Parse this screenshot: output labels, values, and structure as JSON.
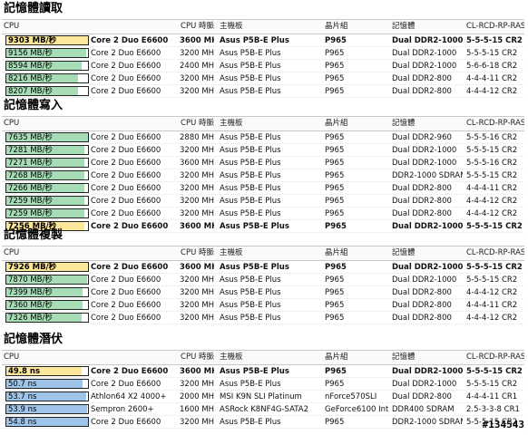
{
  "headers": [
    "CPU",
    "CPU 時脈",
    "主機板",
    "晶片組",
    "記憶體",
    "CL-RCD-RP-RAS"
  ],
  "colors": {
    "green": "#a6ddb6",
    "yellow": "#fde79a",
    "blue": "#9fc4ea"
  },
  "sections": [
    {
      "title": "記憶體讀取",
      "rows": [
        {
          "value": "9303 MB/秒",
          "fill": 1.0,
          "color": "yellow",
          "cpu": "Core 2 Duo E6600",
          "clock": "3600 MHz",
          "board": "Asus P5B-E Plus",
          "chipset": "P965",
          "memory": "Dual DDR2-1000",
          "timing": "5-5-5-15 CR2",
          "bold": true
        },
        {
          "value": "9156 MB/秒",
          "fill": 0.98,
          "color": "green",
          "cpu": "Core 2 Duo E6600",
          "clock": "3200 MHz",
          "board": "Asus P5B-E Plus",
          "chipset": "P965",
          "memory": "Dual DDR2-1000",
          "timing": "5-5-5-15 CR2",
          "bold": false
        },
        {
          "value": "8594 MB/秒",
          "fill": 0.92,
          "color": "green",
          "cpu": "Core 2 Duo E6600",
          "clock": "2400 MHz",
          "board": "Asus P5B-E Plus",
          "chipset": "P965",
          "memory": "Dual DDR2-1000",
          "timing": "5-6-6-18 CR2",
          "bold": false
        },
        {
          "value": "8216 MB/秒",
          "fill": 0.88,
          "color": "green",
          "cpu": "Core 2 Duo E6600",
          "clock": "3200 MHz",
          "board": "Asus P5B-E Plus",
          "chipset": "P965",
          "memory": "Dual DDR2-800",
          "timing": "4-4-4-11 CR2",
          "bold": false
        },
        {
          "value": "8207 MB/秒",
          "fill": 0.88,
          "color": "green",
          "cpu": "Core 2 Duo E6600",
          "clock": "3200 MHz",
          "board": "Asus P5B-E Plus",
          "chipset": "P965",
          "memory": "Dual DDR2-800",
          "timing": "4-4-4-12 CR2",
          "bold": false
        }
      ]
    },
    {
      "title": "記憶體寫入",
      "rows": [
        {
          "value": "7635 MB/秒",
          "fill": 1.0,
          "color": "green",
          "cpu": "Core 2 Duo E6600",
          "clock": "2880 MHz",
          "board": "Asus P5B-E Plus",
          "chipset": "P965",
          "memory": "Dual DDR2-960",
          "timing": "5-5-5-16 CR2",
          "bold": false
        },
        {
          "value": "7281 MB/秒",
          "fill": 0.96,
          "color": "green",
          "cpu": "Core 2 Duo E6600",
          "clock": "3200 MHz",
          "board": "Asus P5B-E Plus",
          "chipset": "P965",
          "memory": "Dual DDR2-1000",
          "timing": "5-5-5-15 CR2",
          "bold": false
        },
        {
          "value": "7271 MB/秒",
          "fill": 0.96,
          "color": "green",
          "cpu": "Core 2 Duo E6600",
          "clock": "3600 MHz",
          "board": "Asus P5B-E Plus",
          "chipset": "P965",
          "memory": "Dual DDR2-1000",
          "timing": "5-5-5-16 CR2",
          "bold": false
        },
        {
          "value": "7268 MB/秒",
          "fill": 0.96,
          "color": "green",
          "cpu": "Core 2 Duo E6600",
          "clock": "3200 MHz",
          "board": "Asus P5B-E Plus",
          "chipset": "P965",
          "memory": "DDR2-1000 SDRAM",
          "timing": "5-5-5-15 CR2",
          "bold": false
        },
        {
          "value": "7266 MB/秒",
          "fill": 0.96,
          "color": "green",
          "cpu": "Core 2 Duo E6600",
          "clock": "3200 MHz",
          "board": "Asus P5B-E Plus",
          "chipset": "P965",
          "memory": "Dual DDR2-800",
          "timing": "4-4-4-11 CR2",
          "bold": false
        },
        {
          "value": "7259 MB/秒",
          "fill": 0.96,
          "color": "green",
          "cpu": "Core 2 Duo E6600",
          "clock": "3200 MHz",
          "board": "Asus P5B-E Plus",
          "chipset": "P965",
          "memory": "Dual DDR2-800",
          "timing": "4-4-4-12 CR2",
          "bold": false
        },
        {
          "value": "7259 MB/秒",
          "fill": 0.96,
          "color": "green",
          "cpu": "Core 2 Duo E6600",
          "clock": "3200 MHz",
          "board": "Asus P5B-E Plus",
          "chipset": "P965",
          "memory": "Dual DDR2-800",
          "timing": "4-4-4-12 CR2",
          "bold": false
        },
        {
          "value": "7256 MB/秒",
          "fill": 0.96,
          "color": "yellow",
          "cpu": "Core 2 Duo E6600",
          "clock": "3600 MHz",
          "board": "Asus P5B-E Plus",
          "chipset": "P965",
          "memory": "Dual DDR2-1000",
          "timing": "5-5-5-15 CR2",
          "bold": true
        }
      ]
    },
    {
      "title": "記憶體複製",
      "rows": [
        {
          "value": "7926 MB/秒",
          "fill": 1.0,
          "color": "yellow",
          "cpu": "Core 2 Duo E6600",
          "clock": "3600 MHz",
          "board": "Asus P5B-E Plus",
          "chipset": "P965",
          "memory": "Dual DDR2-1000",
          "timing": "5-5-5-15 CR2",
          "bold": true
        },
        {
          "value": "7870 MB/秒",
          "fill": 0.99,
          "color": "green",
          "cpu": "Core 2 Duo E6600",
          "clock": "3200 MHz",
          "board": "Asus P5B-E Plus",
          "chipset": "P965",
          "memory": "Dual DDR2-1000",
          "timing": "5-5-5-15 CR2",
          "bold": false
        },
        {
          "value": "7399 MB/秒",
          "fill": 0.93,
          "color": "green",
          "cpu": "Core 2 Duo E6600",
          "clock": "3200 MHz",
          "board": "Asus P5B-E Plus",
          "chipset": "P965",
          "memory": "Dual DDR2-800",
          "timing": "4-4-4-12 CR2",
          "bold": false
        },
        {
          "value": "7360 MB/秒",
          "fill": 0.93,
          "color": "green",
          "cpu": "Core 2 Duo E6600",
          "clock": "3200 MHz",
          "board": "Asus P5B-E Plus",
          "chipset": "P965",
          "memory": "Dual DDR2-800",
          "timing": "4-4-4-11 CR2",
          "bold": false
        },
        {
          "value": "7326 MB/秒",
          "fill": 0.92,
          "color": "green",
          "cpu": "Core 2 Duo E6600",
          "clock": "3200 MHz",
          "board": "Asus P5B-E Plus",
          "chipset": "P965",
          "memory": "Dual DDR2-800",
          "timing": "4-4-4-12 CR2",
          "bold": false
        }
      ]
    },
    {
      "title": "記憶體潛伏",
      "rows": [
        {
          "value": "49.8 ns",
          "fill": 0.92,
          "color": "yellow",
          "cpu": "Core 2 Duo E6600",
          "clock": "3600 MHz",
          "board": "Asus P5B-E Plus",
          "chipset": "P965",
          "memory": "Dual DDR2-1000",
          "timing": "5-5-5-15 CR2",
          "bold": true
        },
        {
          "value": "50.7 ns",
          "fill": 0.93,
          "color": "blue",
          "cpu": "Core 2 Duo E6600",
          "clock": "3200 MHz",
          "board": "Asus P5B-E Plus",
          "chipset": "P965",
          "memory": "Dual DDR2-1000",
          "timing": "5-5-5-15 CR2",
          "bold": false
        },
        {
          "value": "53.7 ns",
          "fill": 0.98,
          "color": "blue",
          "cpu": "Athlon64 X2 4000+",
          "clock": "2000 MHz",
          "board": "MSI K9N SLI Platinum",
          "chipset": "nForce570SLI",
          "memory": "Dual DDR2-800",
          "timing": "4-4-4-11 CR1",
          "bold": false
        },
        {
          "value": "53.9 ns",
          "fill": 0.99,
          "color": "blue",
          "cpu": "Sempron 2600+",
          "clock": "1600 MHz",
          "board": "ASRock K8NF4G-SATA2",
          "chipset": "GeForce6100 Int.",
          "memory": "DDR400 SDRAM",
          "timing": "2.5-3-3-8 CR1",
          "bold": false
        },
        {
          "value": "54.8 ns",
          "fill": 1.0,
          "color": "blue",
          "cpu": "Core 2 Duo E6600",
          "clock": "3200 MHz",
          "board": "Asus P5B-E Plus",
          "chipset": "P965",
          "memory": "DDR2-1000 SDRAM",
          "timing": "5-5-5-15 CR2",
          "bold": false
        }
      ]
    }
  ],
  "watermark": "#134543"
}
